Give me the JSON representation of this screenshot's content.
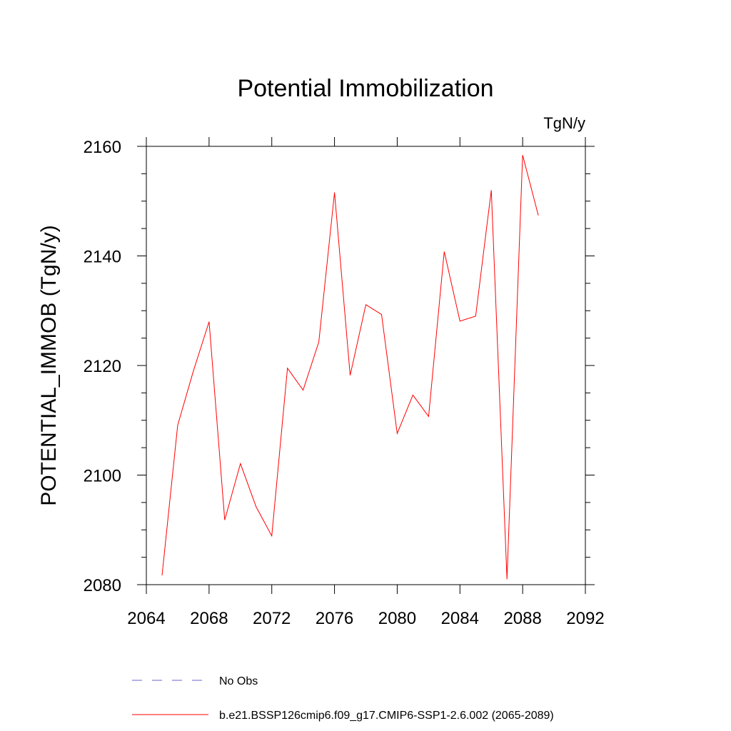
{
  "chart_data": {
    "type": "line",
    "title": "Potential Immobilization",
    "units_label": "TgN/y",
    "ylabel": "POTENTIAL_IMMOB  (TgN/y)",
    "xlabel": "",
    "xlim": [
      2064,
      2092
    ],
    "ylim": [
      2080,
      2162
    ],
    "x_ticks": [
      2064,
      2068,
      2072,
      2076,
      2080,
      2084,
      2088,
      2092
    ],
    "y_ticks": [
      2080,
      2100,
      2120,
      2140,
      2160
    ],
    "x_tick_labels": [
      "2064",
      "2068",
      "2072",
      "2076",
      "2080",
      "2084",
      "2088",
      "2092"
    ],
    "y_tick_labels": [
      "2080",
      "2100",
      "2120",
      "2140",
      "2160"
    ],
    "grid": false,
    "legend_position": "bottom",
    "series": [
      {
        "name": "b.e21.BSSP126cmip6.f09_g17.CMIP6-SSP1-2.6.002 (2065-2089)",
        "color": "#ff0000",
        "x": [
          2065,
          2066,
          2067,
          2068,
          2069,
          2070,
          2071,
          2072,
          2073,
          2074,
          2075,
          2076,
          2077,
          2078,
          2079,
          2080,
          2081,
          2082,
          2083,
          2084,
          2085,
          2086,
          2087,
          2088,
          2089
        ],
        "y": [
          2081.7,
          2109.1,
          2119.0,
          2128.0,
          2091.8,
          2102.1,
          2094.2,
          2088.9,
          2119.5,
          2115.5,
          2124.3,
          2151.6,
          2118.2,
          2131.1,
          2129.3,
          2107.6,
          2114.6,
          2110.7,
          2140.8,
          2128.1,
          2129.0,
          2152.0,
          2081.0,
          2158.4,
          2147.4
        ]
      }
    ],
    "legend": [
      {
        "label": "No Obs",
        "color": "#6666cc",
        "style": "dashed"
      },
      {
        "label": "b.e21.BSSP126cmip6.f09_g17.CMIP6-SSP1-2.6.002 (2065-2089)",
        "color": "#ff0000",
        "style": "solid"
      }
    ]
  }
}
